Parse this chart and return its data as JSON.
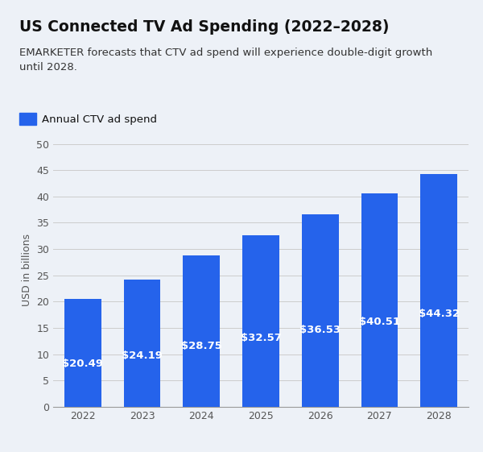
{
  "title": "US Connected TV Ad Spending (2022–2028)",
  "subtitle": "EMARKETER forecasts that CTV ad spend will experience double-digit growth\nuntil 2028.",
  "legend_label": "Annual CTV ad spend",
  "years": [
    2022,
    2023,
    2024,
    2025,
    2026,
    2027,
    2028
  ],
  "values": [
    20.49,
    24.19,
    28.75,
    32.57,
    36.53,
    40.51,
    44.32
  ],
  "bar_color": "#2563eb",
  "label_color": "#ffffff",
  "background_color": "#edf1f7",
  "text_color": "#111111",
  "subtitle_color": "#333333",
  "tick_color": "#555555",
  "ylabel": "USD in billions",
  "ylim": [
    0,
    52
  ],
  "yticks": [
    0,
    5,
    10,
    15,
    20,
    25,
    30,
    35,
    40,
    45,
    50
  ],
  "title_fontsize": 13.5,
  "subtitle_fontsize": 9.5,
  "bar_label_fontsize": 9.5,
  "tick_fontsize": 9,
  "ylabel_fontsize": 9
}
